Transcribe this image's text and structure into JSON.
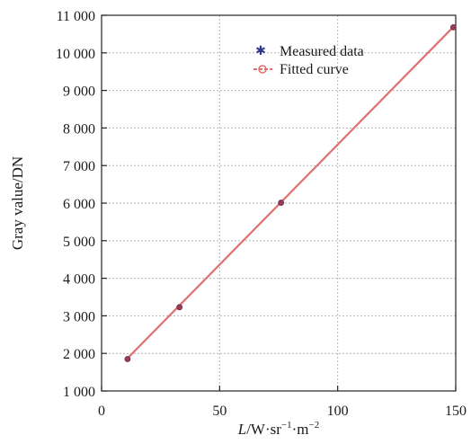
{
  "chart_data": {
    "type": "line",
    "xlabel_parts": {
      "var": "L",
      "rest": "/W·sr",
      "sup1": "−1",
      "mid": "·m",
      "sup2": "−2"
    },
    "ylabel": "Gray value/DN",
    "xlim": [
      0,
      150
    ],
    "ylim": [
      1000,
      11000
    ],
    "xticks": [
      0,
      50,
      100,
      150
    ],
    "xtick_labels": [
      "0",
      "50",
      "100",
      "150"
    ],
    "yticks": [
      1000,
      2000,
      3000,
      4000,
      5000,
      6000,
      7000,
      8000,
      9000,
      10000,
      11000
    ],
    "ytick_labels": [
      "1 000",
      "2 000",
      "3 000",
      "4 000",
      "5 000",
      "6 000",
      "7 000",
      "8 000",
      "9 000",
      "10 000",
      "11 000"
    ],
    "grid": true,
    "legend_position": "top-right",
    "series": [
      {
        "name": "Measured data",
        "kind": "scatter",
        "marker": "asterisk",
        "color": "#2b3a8f",
        "x": [
          11,
          33,
          76,
          149
        ],
        "y": [
          1850,
          3230,
          6010,
          10680
        ]
      },
      {
        "name": "Fitted curve",
        "kind": "line",
        "marker": "circle",
        "color": "#e07070",
        "x": [
          11,
          149
        ],
        "y": [
          1870,
          10690
        ]
      }
    ]
  }
}
